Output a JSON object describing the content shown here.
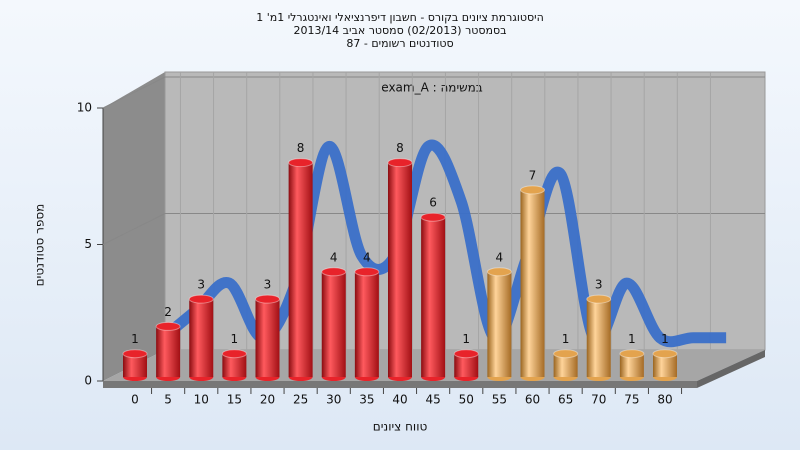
{
  "chart_data": {
    "type": "bar",
    "title": [
      "היסטוגרמת ציונים בקורס - חשבון דיפרנציאלי ואינטגרלי 1מ' 1",
      "בסמסטר (02/2013)  סמסטר אביב 2013/14",
      "סטודנטים רשומים - 87"
    ],
    "annotation": "exam_A : במשימה",
    "x_label": "טווח ציונים",
    "y_label": "מספר סטודנטים",
    "categories": [
      "0",
      "5",
      "10",
      "15",
      "20",
      "25",
      "30",
      "35",
      "40",
      "45",
      "50",
      "55",
      "60",
      "65",
      "70",
      "75",
      "80"
    ],
    "values": [
      1,
      2,
      3,
      1,
      3,
      8,
      4,
      4,
      8,
      6,
      1,
      4,
      7,
      1,
      3,
      1,
      1
    ],
    "colors": [
      "#e8232a",
      "#e8232a",
      "#e8232a",
      "#e8232a",
      "#e8232a",
      "#e8232a",
      "#e8232a",
      "#e8232a",
      "#e8232a",
      "#e8232a",
      "#e8232a",
      "#e3a34e",
      "#e3a34e",
      "#e3a34e",
      "#e3a34e",
      "#e3a34e",
      "#e3a34e"
    ],
    "trend_color": "#3a6fc8",
    "ylim": [
      0,
      10
    ],
    "yticks": [
      0,
      5,
      10
    ],
    "grid": true
  }
}
